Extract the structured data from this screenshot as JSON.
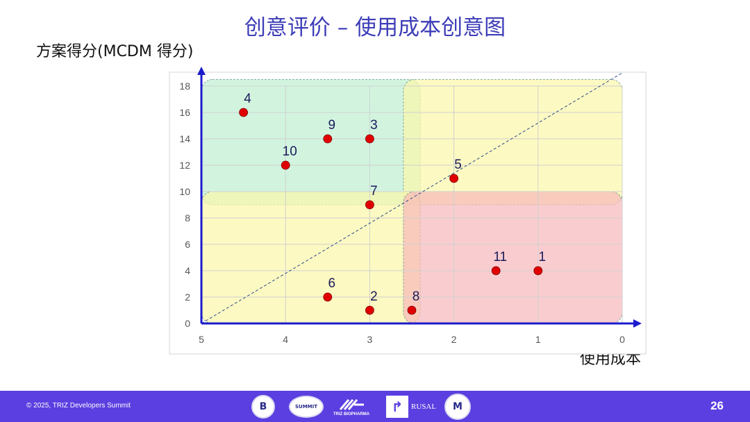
{
  "slide": {
    "title": "创意评价 – 使用成本创意图",
    "page_number": "26",
    "copyright": "© 2025, TRIZ Developers Summit"
  },
  "footer_logos": {
    "summit_text": "SUMMIT",
    "biopharma_text": "TRIZ BIOPHARMA",
    "rusal_text": "RUSAL"
  },
  "chart_data": {
    "type": "scatter",
    "title": "",
    "xlabel": "使用成本",
    "ylabel": "方案得分(MCDM 得分)",
    "xlim": [
      5,
      0
    ],
    "ylim": [
      0,
      18
    ],
    "x_reversed": true,
    "x_ticks": [
      5,
      4,
      3,
      2,
      1,
      0
    ],
    "y_ticks": [
      0,
      2,
      4,
      6,
      8,
      10,
      12,
      14,
      16,
      18
    ],
    "grid": true,
    "points": [
      {
        "label": "4",
        "x": 4.5,
        "y": 16
      },
      {
        "label": "9",
        "x": 3.5,
        "y": 14
      },
      {
        "label": "3",
        "x": 3.0,
        "y": 14
      },
      {
        "label": "10",
        "x": 4.0,
        "y": 12
      },
      {
        "label": "5",
        "x": 2.0,
        "y": 11
      },
      {
        "label": "7",
        "x": 3.0,
        "y": 9
      },
      {
        "label": "11",
        "x": 1.5,
        "y": 4
      },
      {
        "label": "1",
        "x": 1.0,
        "y": 4
      },
      {
        "label": "6",
        "x": 3.5,
        "y": 2
      },
      {
        "label": "2",
        "x": 3.0,
        "y": 1
      },
      {
        "label": "8",
        "x": 2.5,
        "y": 1
      }
    ],
    "point_color": "#e00000",
    "diagonal": {
      "from": [
        5,
        0
      ],
      "to": [
        0,
        19
      ]
    },
    "regions": [
      {
        "x_range": [
          5,
          2.4
        ],
        "y_range": [
          9,
          18.5
        ],
        "color": "#bff0d2"
      },
      {
        "x_range": [
          2.6,
          0
        ],
        "y_range": [
          9,
          18.5
        ],
        "color": "#fbf7a8"
      },
      {
        "x_range": [
          5,
          2.4
        ],
        "y_range": [
          0,
          10
        ],
        "color": "#fbf7a8"
      },
      {
        "x_range": [
          2.6,
          0
        ],
        "y_range": [
          0,
          10
        ],
        "color": "#f6b8bb"
      }
    ]
  }
}
